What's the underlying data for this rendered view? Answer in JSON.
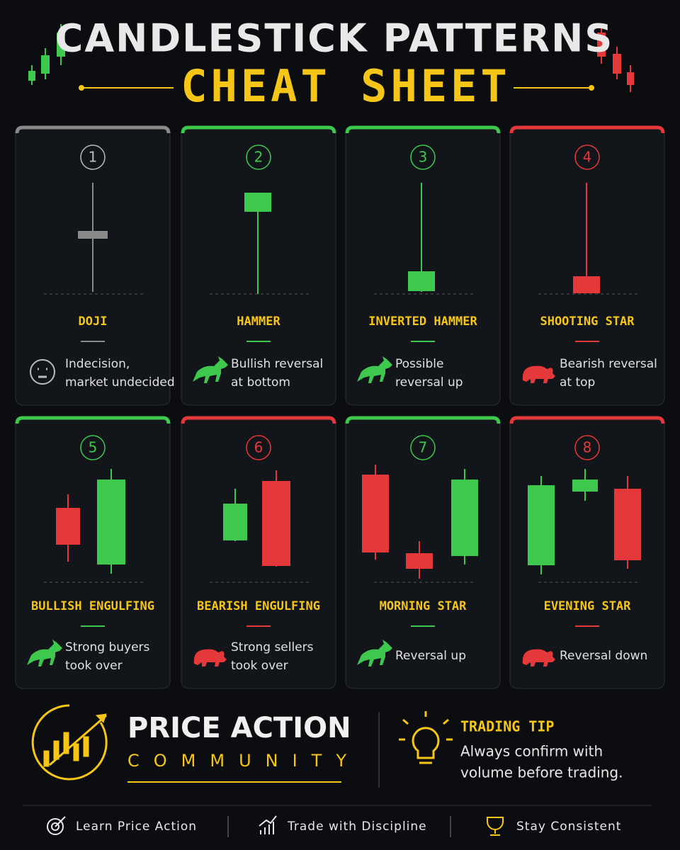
{
  "header": {
    "title": "CANDLESTICK PATTERNS",
    "subtitle": "CHEAT SHEET"
  },
  "cards": [
    {
      "number": "1",
      "name": "DOJI",
      "sentiment": "neutral",
      "description": [
        "Indecision,",
        "market undecided"
      ]
    },
    {
      "number": "2",
      "name": "HAMMER",
      "sentiment": "bullish",
      "description": [
        "Bullish reversal",
        "at bottom"
      ]
    },
    {
      "number": "3",
      "name": "INVERTED HAMMER",
      "sentiment": "bullish",
      "description": [
        "Possible",
        "reversal up"
      ]
    },
    {
      "number": "4",
      "name": "SHOOTING STAR",
      "sentiment": "bearish",
      "description": [
        "Bearish reversal",
        "at top"
      ]
    },
    {
      "number": "5",
      "name": "BULLISH ENGULFING",
      "sentiment": "bullish",
      "description": [
        "Strong buyers",
        "took over"
      ]
    },
    {
      "number": "6",
      "name": "BEARISH ENGULFING",
      "sentiment": "bearish",
      "description": [
        "Strong sellers",
        "took over"
      ]
    },
    {
      "number": "7",
      "name": "MORNING STAR",
      "sentiment": "bullish",
      "description": [
        "Reversal up"
      ]
    },
    {
      "number": "8",
      "name": "EVENING STAR",
      "sentiment": "bearish",
      "description": [
        "Reversal down"
      ]
    }
  ],
  "brand": {
    "name": "PRICE ACTION",
    "tagline": "COMMUNITY"
  },
  "tip": {
    "title": "TRADING TIP",
    "lines": [
      "Always confirm with",
      "volume before trading."
    ]
  },
  "footer": {
    "items": [
      "Learn Price Action",
      "Trade with Discipline",
      "Stay Consistent"
    ]
  }
}
